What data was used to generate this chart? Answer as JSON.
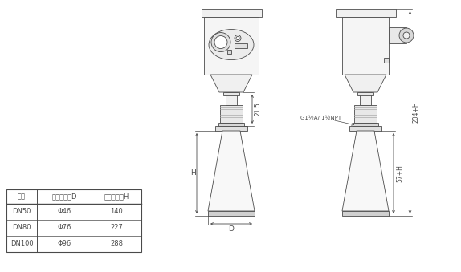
{
  "bg_color": "#ffffff",
  "line_color": "#4a4a4a",
  "table_headers": [
    "法兰",
    "喇叭口直径D",
    "喇叭口高度H"
  ],
  "table_rows": [
    [
      "DN50",
      "Φ46",
      "140"
    ],
    [
      "DN80",
      "Φ76",
      "227"
    ],
    [
      "DN100",
      "Φ96",
      "288"
    ]
  ],
  "dim_21_5": "21.5",
  "dim_H": "H",
  "dim_D": "D",
  "dim_204H": "204+H",
  "dim_57H": "57+H",
  "dim_thread": "G1½A/ 1½NPT",
  "font_size_small": 5.5,
  "font_size_table": 6.0
}
